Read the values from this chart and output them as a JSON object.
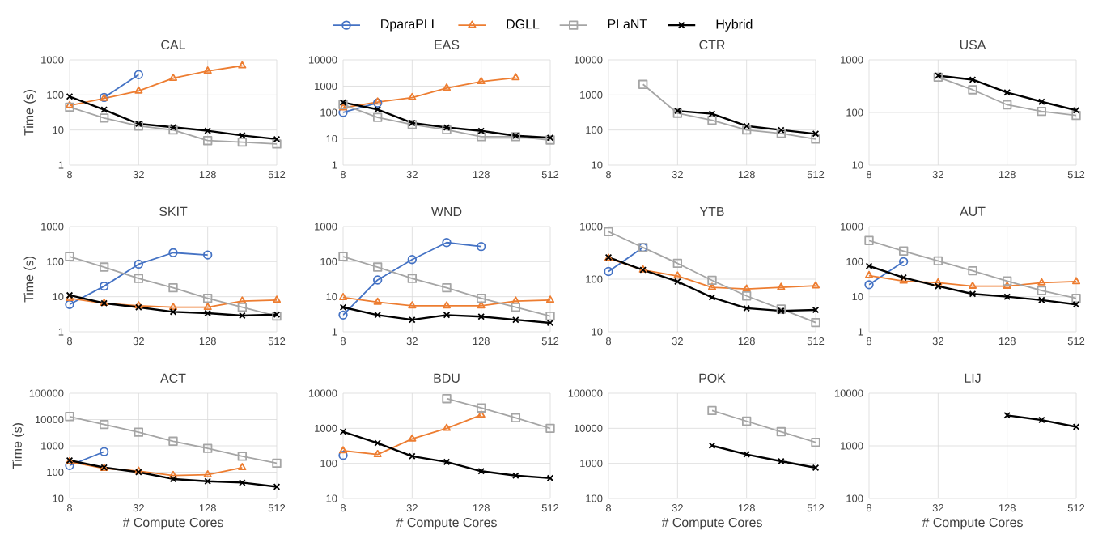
{
  "chart_data": [
    {
      "type": "line",
      "title": "CAL",
      "ylabel": "Time (s)",
      "log": "xy",
      "grid": true,
      "legend": "top",
      "x": [
        8,
        16,
        32,
        64,
        128,
        256,
        512
      ],
      "xlim": [
        8,
        512
      ],
      "xticks": [
        8,
        32,
        128,
        512
      ],
      "ylim": [
        1,
        1000
      ],
      "yticks": [
        1,
        10,
        100,
        1000
      ],
      "series": [
        {
          "name": "DparaPLL",
          "color": "#4472c4",
          "marker": "circle",
          "values": [
            null,
            85,
            380,
            null,
            null,
            null,
            null
          ]
        },
        {
          "name": "DGLL",
          "color": "#ed7d31",
          "marker": "triangle",
          "values": [
            50,
            80,
            130,
            300,
            480,
            680,
            null
          ]
        },
        {
          "name": "PLaNT",
          "color": "#a5a5a5",
          "marker": "square",
          "values": [
            45,
            22,
            13,
            10,
            5,
            4.5,
            4
          ]
        },
        {
          "name": "Hybrid",
          "color": "#000000",
          "marker": "cross",
          "values": [
            90,
            38,
            15,
            12,
            9.5,
            7,
            5.5
          ]
        }
      ]
    },
    {
      "type": "line",
      "title": "EAS",
      "log": "xy",
      "grid": true,
      "x": [
        8,
        16,
        32,
        64,
        128,
        256,
        512
      ],
      "xlim": [
        8,
        512
      ],
      "xticks": [
        8,
        32,
        128,
        512
      ],
      "ylim": [
        1,
        10000
      ],
      "yticks": [
        1,
        10,
        100,
        1000,
        10000
      ],
      "series": [
        {
          "color": "#4472c4",
          "marker": "circle",
          "values": [
            100,
            230,
            null,
            null,
            null,
            null,
            null
          ]
        },
        {
          "color": "#ed7d31",
          "marker": "triangle",
          "values": [
            150,
            250,
            370,
            850,
            1500,
            2100,
            null
          ]
        },
        {
          "color": "#a5a5a5",
          "marker": "square",
          "values": [
            200,
            65,
            35,
            22,
            12,
            12,
            9
          ]
        },
        {
          "color": "#000000",
          "marker": "cross",
          "values": [
            240,
            130,
            40,
            27,
            20,
            13,
            11
          ]
        }
      ]
    },
    {
      "type": "line",
      "title": "CTR",
      "log": "xy",
      "grid": true,
      "xlim": [
        8,
        512
      ],
      "xticks": [
        8,
        32,
        128,
        512
      ],
      "ylim": [
        10,
        10000
      ],
      "yticks": [
        10,
        100,
        1000,
        10000
      ],
      "series": [
        {
          "color": "#a5a5a5",
          "marker": "square",
          "x": [
            16,
            32,
            64,
            128,
            256,
            512
          ],
          "values": [
            2000,
            300,
            190,
            100,
            80,
            55
          ]
        },
        {
          "color": "#000000",
          "marker": "cross",
          "x": [
            32,
            64,
            128,
            256,
            512
          ],
          "values": [
            350,
            290,
            130,
            100,
            78
          ]
        }
      ]
    },
    {
      "type": "line",
      "title": "USA",
      "log": "xy",
      "grid": true,
      "xlim": [
        8,
        512
      ],
      "xticks": [
        8,
        32,
        128,
        512
      ],
      "ylim": [
        10,
        1000
      ],
      "yticks": [
        10,
        100,
        1000
      ],
      "series": [
        {
          "color": "#a5a5a5",
          "marker": "square",
          "x": [
            32,
            64,
            128,
            256,
            512
          ],
          "values": [
            470,
            270,
            140,
            105,
            88
          ]
        },
        {
          "color": "#000000",
          "marker": "cross",
          "x": [
            32,
            64,
            128,
            256,
            512
          ],
          "values": [
            500,
            420,
            240,
            160,
            110
          ]
        }
      ]
    },
    {
      "type": "line",
      "title": "SKIT",
      "ylabel": "Time (s)",
      "log": "xy",
      "grid": true,
      "x": [
        8,
        16,
        32,
        64,
        128,
        256,
        512
      ],
      "xlim": [
        8,
        512
      ],
      "xticks": [
        8,
        32,
        128,
        512
      ],
      "ylim": [
        1,
        1000
      ],
      "yticks": [
        1,
        10,
        100,
        1000
      ],
      "series": [
        {
          "color": "#4472c4",
          "marker": "circle",
          "values": [
            6,
            20,
            85,
            180,
            155,
            null,
            null
          ]
        },
        {
          "color": "#ed7d31",
          "marker": "triangle",
          "values": [
            9,
            6.5,
            5.5,
            5,
            5,
            7.5,
            8
          ]
        },
        {
          "color": "#a5a5a5",
          "marker": "square",
          "values": [
            140,
            70,
            33,
            18,
            9,
            5,
            2.8
          ]
        },
        {
          "color": "#000000",
          "marker": "cross",
          "values": [
            11,
            6.5,
            5,
            3.7,
            3.4,
            2.9,
            3.1
          ]
        }
      ]
    },
    {
      "type": "line",
      "title": "WND",
      "log": "xy",
      "grid": true,
      "x": [
        8,
        16,
        32,
        64,
        128,
        256,
        512
      ],
      "xlim": [
        8,
        512
      ],
      "xticks": [
        8,
        32,
        128,
        512
      ],
      "ylim": [
        1,
        1000
      ],
      "yticks": [
        1,
        10,
        100,
        1000
      ],
      "series": [
        {
          "color": "#4472c4",
          "marker": "circle",
          "values": [
            3,
            30,
            115,
            350,
            270,
            null,
            null
          ]
        },
        {
          "color": "#ed7d31",
          "marker": "triangle",
          "values": [
            9.5,
            7,
            5.5,
            5.5,
            5.5,
            7.5,
            8
          ]
        },
        {
          "color": "#a5a5a5",
          "marker": "square",
          "values": [
            140,
            70,
            33,
            18,
            9,
            5,
            2.8
          ]
        },
        {
          "color": "#000000",
          "marker": "cross",
          "values": [
            5,
            3,
            2.2,
            3,
            2.7,
            2.2,
            1.8
          ]
        }
      ]
    },
    {
      "type": "line",
      "title": "YTB",
      "log": "xy",
      "grid": true,
      "x": [
        8,
        16,
        32,
        64,
        128,
        256,
        512
      ],
      "xlim": [
        8,
        512
      ],
      "xticks": [
        8,
        32,
        128,
        512
      ],
      "ylim": [
        10,
        1000
      ],
      "yticks": [
        10,
        100,
        1000
      ],
      "series": [
        {
          "color": "#4472c4",
          "marker": "circle",
          "values": [
            140,
            400,
            null,
            null,
            null,
            null,
            null
          ]
        },
        {
          "color": "#ed7d31",
          "marker": "triangle",
          "values": [
            250,
            150,
            115,
            70,
            65,
            70,
            75
          ]
        },
        {
          "color": "#a5a5a5",
          "marker": "square",
          "values": [
            800,
            400,
            200,
            95,
            48,
            27,
            15
          ]
        },
        {
          "color": "#000000",
          "marker": "cross",
          "values": [
            260,
            150,
            90,
            45,
            28,
            25,
            26
          ]
        }
      ]
    },
    {
      "type": "line",
      "title": "AUT",
      "log": "xy",
      "grid": true,
      "x": [
        8,
        16,
        32,
        64,
        128,
        256,
        512
      ],
      "xlim": [
        8,
        512
      ],
      "xticks": [
        8,
        32,
        128,
        512
      ],
      "ylim": [
        1,
        1000
      ],
      "yticks": [
        1,
        10,
        100,
        1000
      ],
      "series": [
        {
          "color": "#4472c4",
          "marker": "circle",
          "values": [
            22,
            100,
            null,
            null,
            null,
            null,
            null
          ]
        },
        {
          "color": "#ed7d31",
          "marker": "triangle",
          "values": [
            40,
            28,
            25,
            20,
            20,
            25,
            27
          ]
        },
        {
          "color": "#a5a5a5",
          "marker": "square",
          "values": [
            400,
            200,
            105,
            55,
            28,
            15,
            9
          ]
        },
        {
          "color": "#000000",
          "marker": "cross",
          "values": [
            75,
            35,
            20,
            12,
            10,
            8,
            6
          ]
        }
      ]
    },
    {
      "type": "line",
      "title": "ACT",
      "ylabel": "Time (s)",
      "xlabel": "# Compute Cores",
      "log": "xy",
      "grid": true,
      "x": [
        8,
        16,
        32,
        64,
        128,
        256,
        512
      ],
      "xlim": [
        8,
        512
      ],
      "xticks": [
        8,
        32,
        128,
        512
      ],
      "ylim": [
        10,
        100000
      ],
      "yticks": [
        10,
        100,
        1000,
        10000,
        100000
      ],
      "series": [
        {
          "color": "#4472c4",
          "marker": "circle",
          "values": [
            180,
            600,
            null,
            null,
            null,
            null,
            null
          ]
        },
        {
          "color": "#ed7d31",
          "marker": "triangle",
          "values": [
            250,
            140,
            110,
            75,
            80,
            150,
            null
          ]
        },
        {
          "color": "#a5a5a5",
          "marker": "square",
          "values": [
            13000,
            6500,
            3300,
            1500,
            800,
            400,
            220
          ]
        },
        {
          "color": "#000000",
          "marker": "cross",
          "values": [
            280,
            150,
            100,
            55,
            45,
            40,
            28
          ]
        }
      ]
    },
    {
      "type": "line",
      "title": "BDU",
      "xlabel": "# Compute Cores",
      "log": "xy",
      "grid": true,
      "x": [
        8,
        16,
        32,
        64,
        128,
        256,
        512
      ],
      "xlim": [
        8,
        512
      ],
      "xticks": [
        8,
        32,
        128,
        512
      ],
      "ylim": [
        10,
        10000
      ],
      "yticks": [
        10,
        100,
        1000,
        10000
      ],
      "series": [
        {
          "color": "#4472c4",
          "marker": "circle",
          "values": [
            170,
            null,
            null,
            null,
            null,
            null,
            null
          ]
        },
        {
          "color": "#ed7d31",
          "marker": "triangle",
          "values": [
            230,
            180,
            500,
            1000,
            2400,
            null,
            null
          ]
        },
        {
          "color": "#a5a5a5",
          "marker": "square",
          "values": [
            null,
            null,
            null,
            7000,
            3800,
            2000,
            1000
          ]
        },
        {
          "color": "#000000",
          "marker": "cross",
          "values": [
            800,
            380,
            160,
            110,
            60,
            45,
            38
          ]
        }
      ]
    },
    {
      "type": "line",
      "title": "POK",
      "xlabel": "# Compute Cores",
      "log": "xy",
      "grid": true,
      "xlim": [
        8,
        512
      ],
      "xticks": [
        8,
        32,
        128,
        512
      ],
      "ylim": [
        100,
        100000
      ],
      "yticks": [
        100,
        1000,
        10000,
        100000
      ],
      "series": [
        {
          "color": "#a5a5a5",
          "marker": "square",
          "x": [
            64,
            128,
            256,
            512
          ],
          "values": [
            32000,
            16000,
            8000,
            4000
          ]
        },
        {
          "color": "#000000",
          "marker": "cross",
          "x": [
            64,
            128,
            256,
            512
          ],
          "values": [
            3200,
            1800,
            1150,
            750
          ]
        }
      ]
    },
    {
      "type": "line",
      "title": "LIJ",
      "xlabel": "# Compute Cores",
      "log": "xy",
      "grid": true,
      "xlim": [
        8,
        512
      ],
      "xticks": [
        8,
        32,
        128,
        512
      ],
      "ylim": [
        100,
        10000
      ],
      "yticks": [
        100,
        1000,
        10000
      ],
      "series": [
        {
          "color": "#000000",
          "marker": "cross",
          "x": [
            128,
            256,
            512
          ],
          "values": [
            3800,
            3100,
            2300
          ]
        }
      ]
    }
  ]
}
